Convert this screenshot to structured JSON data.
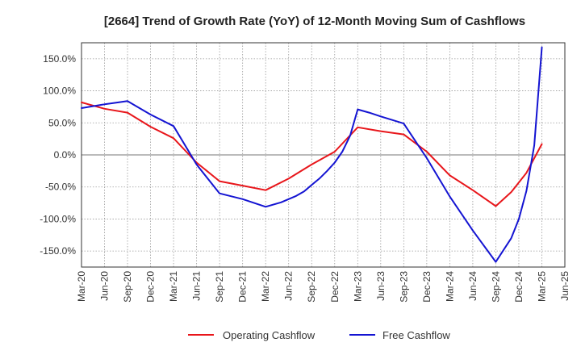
{
  "chart_data": {
    "type": "line",
    "title": "[2664]  Trend of Growth Rate (YoY) of 12-Month Moving Sum of Cashflows",
    "xlabel": "",
    "ylabel": "",
    "x": [
      "Mar-20",
      "Jun-20",
      "Sep-20",
      "Dec-20",
      "Mar-21",
      "Jun-21",
      "Sep-21",
      "Dec-21",
      "Mar-22",
      "Jun-22",
      "Sep-22",
      "Dec-22",
      "Mar-23",
      "Jun-23",
      "Sep-23",
      "Dec-23",
      "Mar-24",
      "Jun-24",
      "Sep-24",
      "Dec-24",
      "Mar-25",
      "Jun-25"
    ],
    "ylim": [
      -175,
      175
    ],
    "yticks": [
      150,
      100,
      50,
      0,
      -50,
      -100,
      -150
    ],
    "ytick_labels": [
      "150.0%",
      "100.0%",
      "50.0%",
      "0.0%",
      "-50.0%",
      "-100.0%",
      "-150.0%"
    ],
    "grid": true,
    "legend_position": "bottom-center",
    "series": [
      {
        "name": "Operating Cashflow",
        "color": "#e8161b",
        "points": [
          {
            "x": 0,
            "y": 82
          },
          {
            "x": 1,
            "y": 72
          },
          {
            "x": 2,
            "y": 66
          },
          {
            "x": 3,
            "y": 44
          },
          {
            "x": 4,
            "y": 26
          },
          {
            "x": 5,
            "y": -12
          },
          {
            "x": 6,
            "y": -41
          },
          {
            "x": 7,
            "y": -48
          },
          {
            "x": 8,
            "y": -55
          },
          {
            "x": 9,
            "y": -37
          },
          {
            "x": 10,
            "y": -15
          },
          {
            "x": 11,
            "y": 5
          },
          {
            "x": 12,
            "y": 43
          },
          {
            "x": 13,
            "y": 37
          },
          {
            "x": 14,
            "y": 32
          },
          {
            "x": 15,
            "y": 5
          },
          {
            "x": 16,
            "y": -32
          },
          {
            "x": 17,
            "y": -55
          },
          {
            "x": 18,
            "y": -80
          },
          {
            "x": 18.67,
            "y": -58
          },
          {
            "x": 19.33,
            "y": -28
          },
          {
            "x": 20,
            "y": 17
          }
        ]
      },
      {
        "name": "Free Cashflow",
        "color": "#1414d2",
        "points": [
          {
            "x": 0,
            "y": 73
          },
          {
            "x": 1,
            "y": 79
          },
          {
            "x": 2,
            "y": 84
          },
          {
            "x": 3,
            "y": 63
          },
          {
            "x": 4,
            "y": 45
          },
          {
            "x": 5,
            "y": -15
          },
          {
            "x": 6,
            "y": -60
          },
          {
            "x": 7,
            "y": -69
          },
          {
            "x": 8,
            "y": -81
          },
          {
            "x": 8.67,
            "y": -74
          },
          {
            "x": 9.33,
            "y": -64
          },
          {
            "x": 9.67,
            "y": -57
          },
          {
            "x": 10,
            "y": -47
          },
          {
            "x": 10.33,
            "y": -37
          },
          {
            "x": 10.67,
            "y": -25
          },
          {
            "x": 11,
            "y": -12
          },
          {
            "x": 11.33,
            "y": 5
          },
          {
            "x": 11.67,
            "y": 30
          },
          {
            "x": 12,
            "y": 71
          },
          {
            "x": 12.5,
            "y": 66
          },
          {
            "x": 13,
            "y": 60
          },
          {
            "x": 14,
            "y": 49
          },
          {
            "x": 15,
            "y": -5
          },
          {
            "x": 16,
            "y": -65
          },
          {
            "x": 17,
            "y": -118
          },
          {
            "x": 18,
            "y": -167
          },
          {
            "x": 18.67,
            "y": -130
          },
          {
            "x": 19,
            "y": -100
          },
          {
            "x": 19.33,
            "y": -56
          },
          {
            "x": 19.67,
            "y": 15
          },
          {
            "x": 20,
            "y": 168
          }
        ]
      }
    ]
  }
}
